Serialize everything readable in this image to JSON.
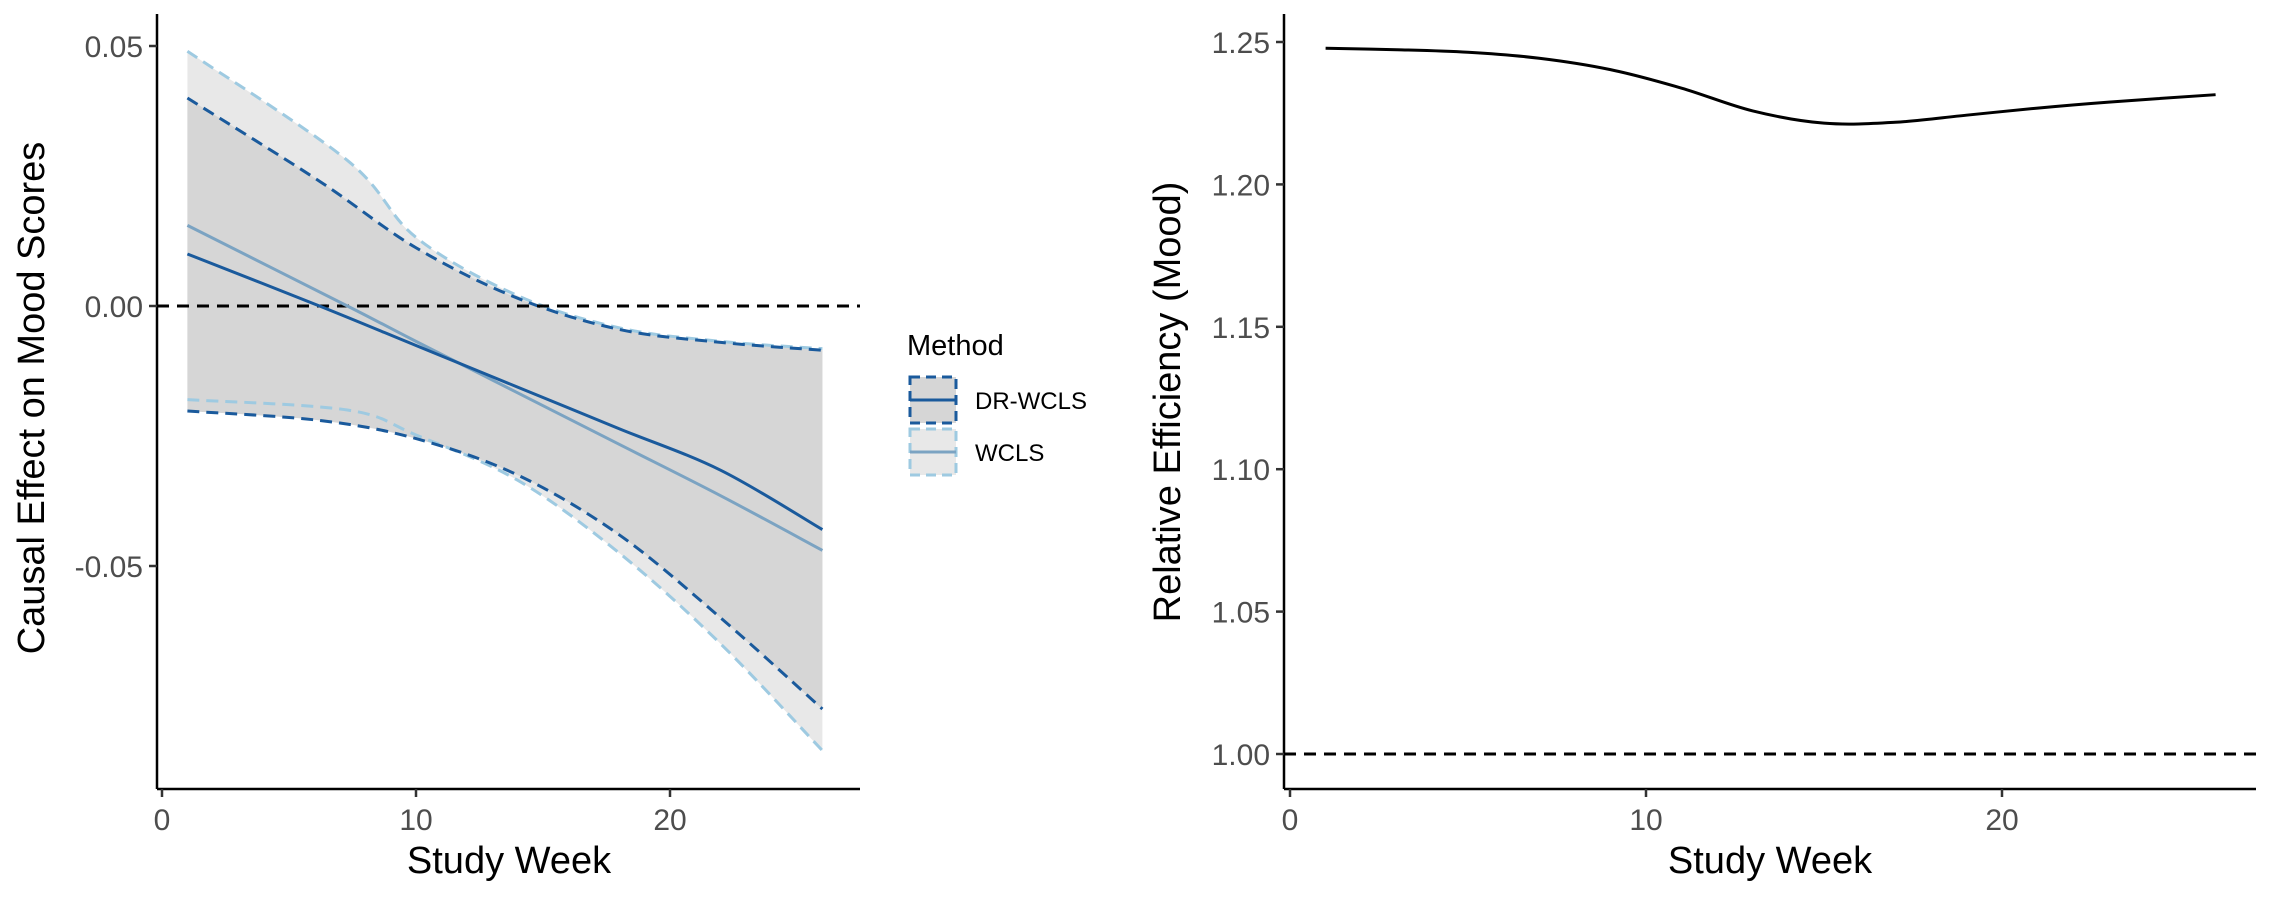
{
  "chart_data": [
    {
      "type": "line",
      "panel": "left",
      "xlabel": "Study Week",
      "ylabel": "Causal Effect on Mood Scores",
      "xlim": [
        0,
        27
      ],
      "ylim": [
        -0.092,
        0.055
      ],
      "x_ticks": [
        0,
        10,
        20
      ],
      "y_ticks": [
        -0.05,
        0.0,
        0.05
      ],
      "x_tick_labels": [
        "0",
        "10",
        "20"
      ],
      "y_tick_labels": [
        "-0.05",
        "0.00",
        "0.05"
      ],
      "reference_line": {
        "y": 0,
        "style": "dashed",
        "color": "#000000"
      },
      "grid": false,
      "legend": {
        "title": "Method",
        "position": "right",
        "entries": [
          "DR-WCLS",
          "WCLS"
        ]
      },
      "series": [
        {
          "name": "DR-WCLS",
          "color": "#1a5a9c",
          "fill": "#d6d6d6",
          "x": [
            1,
            6.2,
            10,
            14,
            18,
            22,
            26
          ],
          "estimate": [
            0.01,
            0.0,
            -0.0076,
            -0.0156,
            -0.0236,
            -0.0316,
            -0.043
          ],
          "lower": [
            -0.0202,
            -0.022,
            -0.0255,
            -0.0325,
            -0.044,
            -0.06,
            -0.0775
          ],
          "upper": [
            0.04,
            0.024,
            0.0112,
            0.0015,
            -0.0045,
            -0.007,
            -0.0085
          ]
        },
        {
          "name": "WCLS",
          "color": "#7ba3c2",
          "band_color": "#9ecae1",
          "fill": "#e8e8e8",
          "x": [
            1,
            7.3,
            10,
            14,
            18,
            22,
            26
          ],
          "estimate": [
            0.0155,
            0.0,
            -0.0068,
            -0.0167,
            -0.0266,
            -0.0365,
            -0.047
          ],
          "lower": [
            -0.018,
            -0.02,
            -0.0248,
            -0.0335,
            -0.0475,
            -0.065,
            -0.0855
          ],
          "upper": [
            0.049,
            0.028,
            0.0132,
            0.002,
            -0.0042,
            -0.0068,
            -0.0082
          ]
        }
      ]
    },
    {
      "type": "line",
      "panel": "right",
      "xlabel": "Study Week",
      "ylabel": "Relative Efficiency (Mood)",
      "xlim": [
        0,
        27
      ],
      "ylim": [
        0.993,
        1.255
      ],
      "x_ticks": [
        0,
        10,
        20
      ],
      "y_ticks": [
        1.0,
        1.05,
        1.1,
        1.15,
        1.2,
        1.25
      ],
      "x_tick_labels": [
        "0",
        "10",
        "20"
      ],
      "y_tick_labels": [
        "1.00",
        "1.05",
        "1.10",
        "1.15",
        "1.20",
        "1.25"
      ],
      "reference_line": {
        "y": 1.0,
        "style": "dashed",
        "color": "#000000"
      },
      "grid": false,
      "series": [
        {
          "color": "#000000",
          "x": [
            1,
            3,
            5,
            7,
            9,
            11,
            13,
            15,
            17,
            19,
            21,
            23,
            26
          ],
          "y": [
            1.2478,
            1.2473,
            1.2464,
            1.2443,
            1.2403,
            1.2338,
            1.2258,
            1.2215,
            1.2218,
            1.2243,
            1.2268,
            1.2289,
            1.2315
          ]
        }
      ]
    }
  ]
}
